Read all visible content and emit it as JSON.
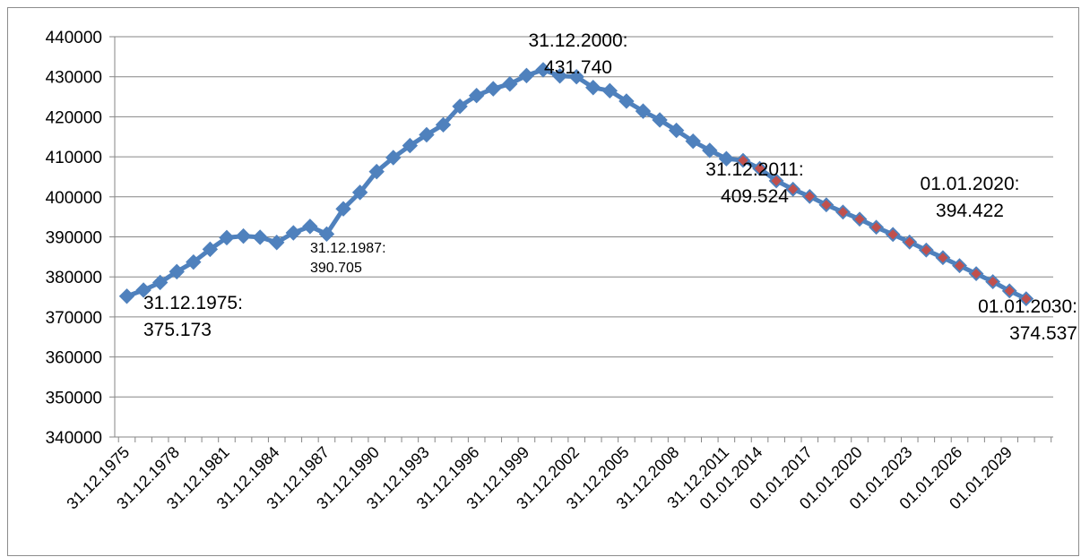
{
  "chart_data": {
    "type": "line",
    "title": "",
    "xlabel": "",
    "ylabel": "",
    "ylim": [
      340000,
      440000
    ],
    "yticks": [
      "340000",
      "350000",
      "360000",
      "370000",
      "380000",
      "390000",
      "400000",
      "410000",
      "420000",
      "430000",
      "440000"
    ],
    "xtick_labels": [
      "31.12.1975",
      "31.12.1978",
      "31.12.1981",
      "31.12.1984",
      "31.12.1987",
      "31.12.1990",
      "31.12.1993",
      "31.12.1996",
      "31.12.1999",
      "31.12.2002",
      "31.12.2005",
      "31.12.2008",
      "31.12.2011",
      "01.01.2014",
      "01.01.2017",
      "01.01.2020",
      "01.01.2023",
      "01.01.2026",
      "01.01.2029"
    ],
    "grid": true,
    "colors": {
      "line": "#4f81bd",
      "observed_marker": "#4f81bd",
      "projected_marker": "#c0504d"
    },
    "series": [
      {
        "x": [
          "31.12.1975",
          "31.12.1976",
          "31.12.1977",
          "31.12.1978",
          "31.12.1979",
          "31.12.1980",
          "31.12.1981",
          "31.12.1982",
          "31.12.1983",
          "31.12.1984",
          "31.12.1985",
          "31.12.1986",
          "31.12.1987",
          "31.12.1988",
          "31.12.1989",
          "31.12.1990",
          "31.12.1991",
          "31.12.1992",
          "31.12.1993",
          "31.12.1994",
          "31.12.1995",
          "31.12.1996",
          "31.12.1997",
          "31.12.1998",
          "31.12.1999",
          "31.12.2000",
          "31.12.2001",
          "31.12.2002",
          "31.12.2003",
          "31.12.2004",
          "31.12.2005",
          "31.12.2006",
          "31.12.2007",
          "31.12.2008",
          "31.12.2009",
          "31.12.2010",
          "31.12.2011"
        ],
        "values": [
          375173,
          376700,
          378600,
          381300,
          383700,
          386900,
          389800,
          390200,
          389900,
          388600,
          391000,
          392600,
          390705,
          397000,
          401100,
          406300,
          409800,
          412800,
          415500,
          418000,
          422600,
          425300,
          427000,
          428200,
          430300,
          431740,
          430200,
          430000,
          427300,
          426500,
          423900,
          421400,
          419200,
          416600,
          413900,
          411600,
          409524
        ]
      },
      {
        "x": [
          "31.12.2011",
          "01.01.2013",
          "01.01.2014",
          "01.01.2015",
          "01.01.2016",
          "01.01.2017",
          "01.01.2018",
          "01.01.2019",
          "01.01.2020",
          "01.01.2021",
          "01.01.2022",
          "01.01.2023",
          "01.01.2024",
          "01.01.2025",
          "01.01.2026",
          "01.01.2027",
          "01.01.2028",
          "01.01.2029",
          "01.01.2030"
        ],
        "values": [
          409524,
          409100,
          407100,
          404000,
          401900,
          400100,
          398000,
          396200,
          394422,
          392400,
          390600,
          388700,
          386700,
          384800,
          382800,
          380800,
          378800,
          376500,
          374537
        ]
      }
    ],
    "annotations": [
      {
        "lines": [
          "31.12.1975:",
          "375.173"
        ],
        "x": "31.12.1975",
        "y": 375173
      },
      {
        "lines": [
          "31.12.1987:",
          "390.705"
        ],
        "x": "31.12.1987",
        "y": 390705
      },
      {
        "lines": [
          "31.12.2000:",
          "431.740"
        ],
        "x": "31.12.2000",
        "y": 431740
      },
      {
        "lines": [
          "31.12.2011:",
          "409.524"
        ],
        "x": "31.12.2011",
        "y": 409524
      },
      {
        "lines": [
          "01.01.2020:",
          "394.422"
        ],
        "x": "01.01.2020",
        "y": 394422
      },
      {
        "lines": [
          "01.01.2030:",
          "374.537"
        ],
        "x": "01.01.2030",
        "y": 374537
      }
    ]
  }
}
